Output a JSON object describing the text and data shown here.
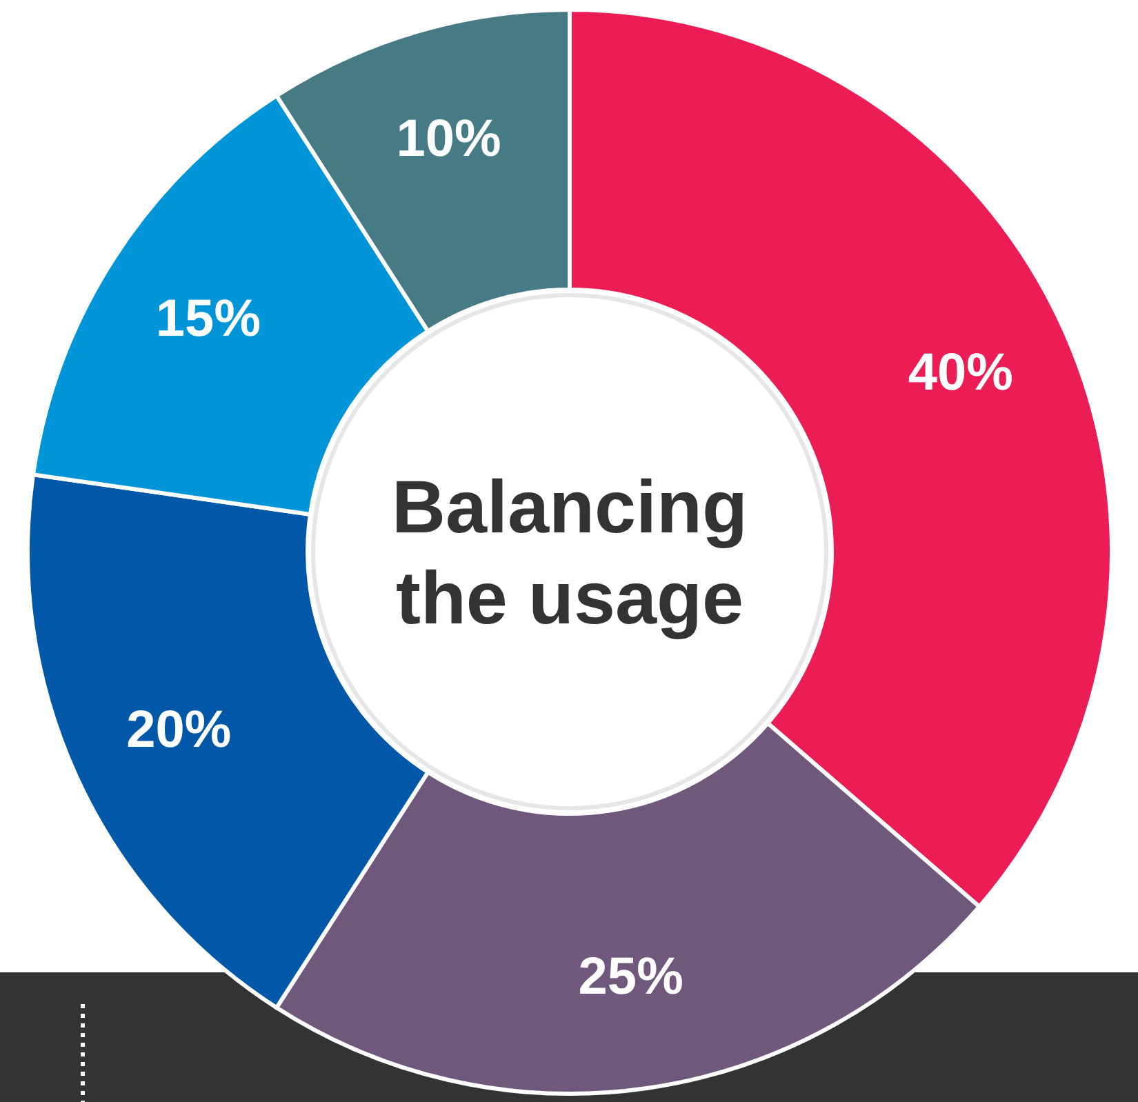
{
  "chart_data": {
    "type": "donut",
    "title": "Balancing the usage",
    "categories": [
      null,
      null,
      null,
      null,
      null
    ],
    "values": [
      40,
      25,
      20,
      15,
      10
    ],
    "colors": [
      "#ec1c54",
      "#6f587c",
      "#0157a8",
      "#0095d9",
      "#467a84"
    ],
    "value_labels": [
      "40%",
      "25%",
      "20%",
      "15%",
      "10%"
    ]
  }
}
